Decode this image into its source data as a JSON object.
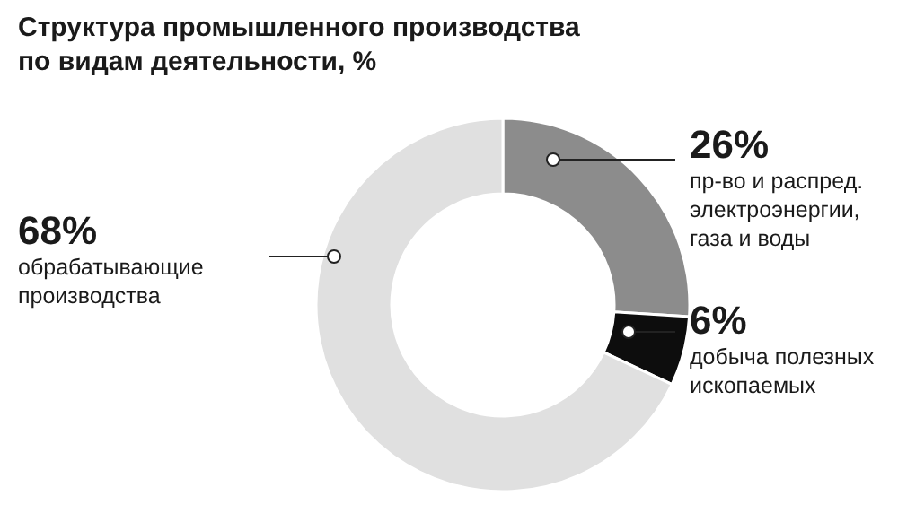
{
  "chart_data": {
    "type": "donut",
    "title": "Структура промышленного производства по видам деятельности, %",
    "categories": [
      "пр-во и распред. электроэнергии, газа и воды",
      "добыча полезных ископаемых",
      "обрабатывающие производства"
    ],
    "values": [
      26,
      6,
      68
    ],
    "colors": [
      "#8c8c8c",
      "#0d0d0d",
      "#e0e0e0"
    ],
    "value_labels": [
      "26%",
      "6%",
      "68%"
    ],
    "legend": false
  }
}
